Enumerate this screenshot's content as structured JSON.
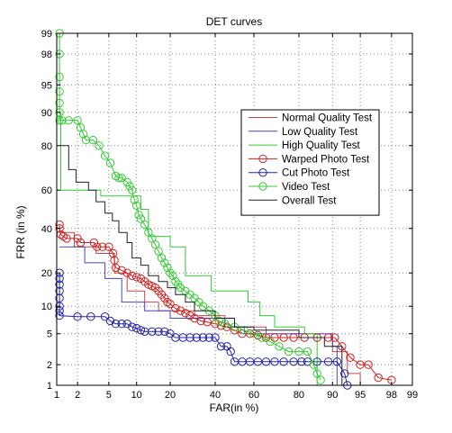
{
  "chart_data": {
    "type": "line",
    "title": "DET curves",
    "xlabel": "FAR(in %)",
    "ylabel": "FRR (in %)",
    "x_scale": "probit",
    "y_scale": "probit",
    "xlim": [
      1,
      99
    ],
    "ylim": [
      1,
      99
    ],
    "x_ticks": [
      1,
      2,
      5,
      10,
      20,
      40,
      60,
      80,
      90,
      95,
      98,
      99
    ],
    "y_ticks": [
      1,
      2,
      5,
      10,
      20,
      40,
      60,
      80,
      90,
      95,
      98,
      99
    ],
    "grid": true,
    "legend_position": "top-right",
    "series": [
      {
        "name": "Normal Quality Test",
        "color": "#cc4444",
        "marker": "none",
        "points": [
          [
            1.1,
            38
          ],
          [
            1.8,
            38
          ],
          [
            1.8,
            31
          ],
          [
            3.5,
            31
          ],
          [
            3.5,
            28
          ],
          [
            5.8,
            28
          ],
          [
            5.8,
            20
          ],
          [
            8,
            20
          ],
          [
            8,
            14
          ],
          [
            12,
            14
          ],
          [
            12,
            11
          ],
          [
            16,
            11
          ],
          [
            16,
            9
          ],
          [
            30,
            9
          ],
          [
            30,
            8
          ],
          [
            45,
            8
          ],
          [
            45,
            6
          ],
          [
            66,
            6
          ],
          [
            66,
            4.5
          ],
          [
            90,
            4.5
          ],
          [
            90,
            3
          ],
          [
            93,
            3
          ],
          [
            93,
            1.5
          ],
          [
            95,
            1.5
          ],
          [
            95,
            1
          ]
        ]
      },
      {
        "name": "Low Quality Test",
        "color": "#4444cc",
        "marker": "none",
        "points": [
          [
            1.1,
            31
          ],
          [
            2.5,
            31
          ],
          [
            2.5,
            24
          ],
          [
            4.5,
            24
          ],
          [
            4.5,
            18
          ],
          [
            7,
            18
          ],
          [
            7,
            11
          ],
          [
            12,
            11
          ],
          [
            12,
            9
          ],
          [
            20,
            9
          ],
          [
            20,
            7.5
          ],
          [
            45,
            7.5
          ],
          [
            45,
            6
          ],
          [
            55,
            6
          ],
          [
            55,
            5
          ],
          [
            90,
            5
          ],
          [
            90,
            3.5
          ],
          [
            91,
            3.5
          ],
          [
            91,
            1
          ]
        ]
      },
      {
        "name": "High Quality Test",
        "color": "#33cc33",
        "marker": "none",
        "points": [
          [
            1.1,
            90
          ],
          [
            1.15,
            90
          ],
          [
            1.15,
            60
          ],
          [
            4,
            60
          ],
          [
            4,
            57
          ],
          [
            11,
            57
          ],
          [
            11,
            50
          ],
          [
            13,
            50
          ],
          [
            13,
            36
          ],
          [
            20,
            36
          ],
          [
            20,
            31
          ],
          [
            26,
            31
          ],
          [
            26,
            19
          ],
          [
            38,
            19
          ],
          [
            38,
            14
          ],
          [
            57,
            14
          ],
          [
            57,
            11
          ],
          [
            63,
            11
          ],
          [
            63,
            8
          ],
          [
            70,
            8
          ],
          [
            70,
            6
          ],
          [
            82,
            6
          ],
          [
            82,
            5
          ],
          [
            86,
            5
          ],
          [
            86,
            1
          ]
        ]
      },
      {
        "name": "Warped Photo Test",
        "color": "#cc2222",
        "marker": "circle",
        "points": [
          [
            1.1,
            42
          ],
          [
            1.1,
            40
          ],
          [
            1.15,
            37
          ],
          [
            1.25,
            36
          ],
          [
            1.4,
            35
          ],
          [
            2,
            35
          ],
          [
            2.2,
            33
          ],
          [
            3.3,
            33
          ],
          [
            3.6,
            31
          ],
          [
            4.2,
            31
          ],
          [
            5,
            31
          ],
          [
            5.6,
            28
          ],
          [
            5.8,
            25
          ],
          [
            6,
            22
          ],
          [
            7,
            21
          ],
          [
            8,
            20
          ],
          [
            9,
            19
          ],
          [
            10,
            18.5
          ],
          [
            11,
            18
          ],
          [
            12,
            17
          ],
          [
            13,
            16
          ],
          [
            14,
            15.5
          ],
          [
            15,
            15
          ],
          [
            16,
            14
          ],
          [
            17,
            13
          ],
          [
            18,
            12
          ],
          [
            19,
            11
          ],
          [
            20,
            10.5
          ],
          [
            22,
            9.5
          ],
          [
            24,
            9
          ],
          [
            26,
            8.5
          ],
          [
            28,
            8
          ],
          [
            30,
            7.5
          ],
          [
            33,
            7
          ],
          [
            36,
            6.8
          ],
          [
            40,
            6.5
          ],
          [
            43,
            6.2
          ],
          [
            46,
            6
          ],
          [
            50,
            5.5
          ],
          [
            54,
            5
          ],
          [
            58,
            5
          ],
          [
            62,
            4.8
          ],
          [
            66,
            4.5
          ],
          [
            70,
            4.5
          ],
          [
            74,
            4.5
          ],
          [
            78,
            4.5
          ],
          [
            82,
            4.5
          ],
          [
            86,
            4.5
          ],
          [
            89,
            4.5
          ],
          [
            90.5,
            4.5
          ],
          [
            92,
            3.5
          ],
          [
            93.5,
            2.5
          ],
          [
            95,
            2
          ],
          [
            96,
            2
          ],
          [
            97,
            1.3
          ],
          [
            98,
            1.2
          ]
        ]
      },
      {
        "name": "Cut Photo Test",
        "color": "#2222aa",
        "marker": "circle",
        "points": [
          [
            1.1,
            20
          ],
          [
            1.1,
            18
          ],
          [
            1.1,
            16
          ],
          [
            1.1,
            14
          ],
          [
            1.1,
            12
          ],
          [
            1.1,
            10
          ],
          [
            1.1,
            9
          ],
          [
            1.1,
            8
          ],
          [
            2,
            7.8
          ],
          [
            3,
            7.8
          ],
          [
            4.5,
            7.8
          ],
          [
            5.2,
            7
          ],
          [
            6,
            6.5
          ],
          [
            7,
            6.5
          ],
          [
            8,
            6.5
          ],
          [
            9,
            6
          ],
          [
            10,
            5.8
          ],
          [
            11,
            5.5
          ],
          [
            12,
            5.3
          ],
          [
            14,
            5.3
          ],
          [
            16,
            5.3
          ],
          [
            18,
            5.3
          ],
          [
            20,
            5
          ],
          [
            22,
            4.5
          ],
          [
            25,
            4.5
          ],
          [
            28,
            4.5
          ],
          [
            31,
            4.5
          ],
          [
            34,
            4.5
          ],
          [
            37,
            4.5
          ],
          [
            40,
            4.5
          ],
          [
            43,
            3.5
          ],
          [
            46,
            3.5
          ],
          [
            48,
            3
          ],
          [
            50,
            2.2
          ],
          [
            54,
            2.2
          ],
          [
            58,
            2.2
          ],
          [
            62,
            2.2
          ],
          [
            66,
            2.2
          ],
          [
            70,
            2.2
          ],
          [
            74,
            2.2
          ],
          [
            78,
            2.2
          ],
          [
            81,
            2.2
          ],
          [
            83,
            2.2
          ],
          [
            86,
            2.2
          ],
          [
            89,
            2.2
          ],
          [
            91,
            2.2
          ],
          [
            92.5,
            1.5
          ],
          [
            93,
            1
          ]
        ]
      },
      {
        "name": "Video Test",
        "color": "#33cc33",
        "marker": "circle",
        "points": [
          [
            1.1,
            99
          ],
          [
            1.1,
            98
          ],
          [
            1.1,
            96
          ],
          [
            1.1,
            94
          ],
          [
            1.1,
            92
          ],
          [
            1.1,
            90
          ],
          [
            1.1,
            88
          ],
          [
            1.2,
            88
          ],
          [
            1.5,
            88
          ],
          [
            2,
            88
          ],
          [
            2.2,
            86
          ],
          [
            2.4,
            84
          ],
          [
            2.6,
            82
          ],
          [
            3.2,
            82
          ],
          [
            3.8,
            80
          ],
          [
            4.5,
            76
          ],
          [
            5.2,
            73
          ],
          [
            6,
            67
          ],
          [
            6.5,
            66
          ],
          [
            7,
            66
          ],
          [
            8,
            64
          ],
          [
            8.5,
            62
          ],
          [
            9,
            60
          ],
          [
            9.5,
            55
          ],
          [
            10,
            52
          ],
          [
            10.5,
            47
          ],
          [
            11,
            45
          ],
          [
            12,
            42
          ],
          [
            13,
            38
          ],
          [
            14,
            35
          ],
          [
            15,
            32
          ],
          [
            16,
            29
          ],
          [
            17,
            26
          ],
          [
            18,
            24
          ],
          [
            19,
            22
          ],
          [
            20,
            20
          ],
          [
            21,
            19
          ],
          [
            22,
            17
          ],
          [
            23,
            16
          ],
          [
            24,
            15
          ],
          [
            26,
            14
          ],
          [
            28,
            13
          ],
          [
            30,
            12
          ],
          [
            32,
            11
          ],
          [
            34,
            10
          ],
          [
            37,
            9
          ],
          [
            40,
            8
          ],
          [
            42,
            7
          ],
          [
            45,
            6.5
          ],
          [
            50,
            6
          ],
          [
            55,
            5.5
          ],
          [
            60,
            5
          ],
          [
            64,
            4.5
          ],
          [
            68,
            4
          ],
          [
            72,
            3.5
          ],
          [
            76,
            3
          ],
          [
            80,
            3
          ],
          [
            83,
            3
          ],
          [
            85,
            2
          ],
          [
            86,
            1.5
          ],
          [
            87,
            1.2
          ]
        ]
      },
      {
        "name": "Overall Test",
        "color": "#222222",
        "marker": "none",
        "points": [
          [
            1.1,
            80
          ],
          [
            1.5,
            80
          ],
          [
            1.5,
            70
          ],
          [
            1.9,
            70
          ],
          [
            1.9,
            64
          ],
          [
            2.8,
            64
          ],
          [
            2.8,
            60
          ],
          [
            3.5,
            60
          ],
          [
            3.5,
            54
          ],
          [
            4.5,
            54
          ],
          [
            4.5,
            48
          ],
          [
            5.5,
            48
          ],
          [
            5.5,
            44
          ],
          [
            6.5,
            44
          ],
          [
            6.5,
            38
          ],
          [
            8,
            38
          ],
          [
            8,
            33
          ],
          [
            9,
            33
          ],
          [
            9,
            26
          ],
          [
            11,
            26
          ],
          [
            11,
            23
          ],
          [
            13,
            23
          ],
          [
            13,
            19
          ],
          [
            16,
            19
          ],
          [
            16,
            17
          ],
          [
            19,
            17
          ],
          [
            19,
            15
          ],
          [
            22,
            15
          ],
          [
            22,
            13
          ],
          [
            26,
            13
          ],
          [
            26,
            11
          ],
          [
            30,
            11
          ],
          [
            30,
            9
          ],
          [
            40,
            9
          ],
          [
            40,
            7.5
          ],
          [
            50,
            7.5
          ],
          [
            50,
            6
          ],
          [
            60,
            6
          ],
          [
            60,
            5.5
          ],
          [
            80,
            5.5
          ],
          [
            80,
            4.5
          ],
          [
            88,
            4.5
          ],
          [
            88,
            3.5
          ],
          [
            92,
            3.5
          ],
          [
            92,
            1
          ]
        ]
      }
    ]
  }
}
